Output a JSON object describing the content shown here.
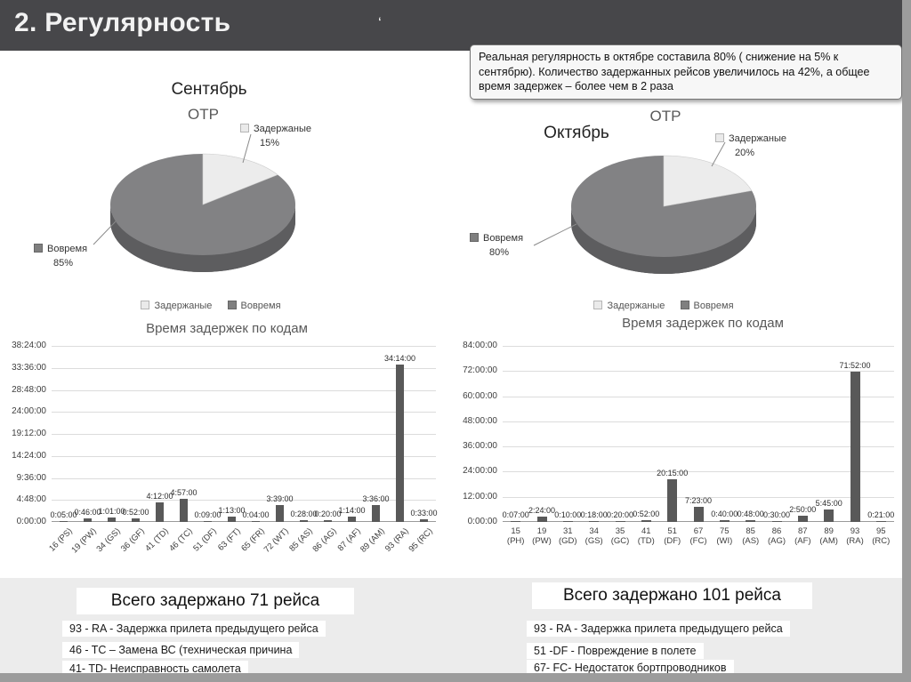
{
  "slide": {
    "title": "2. Регулярность",
    "stray_mark": "‘",
    "note": "Реальная регулярность в октябре составила 80% ( снижение на 5% к сентябрю). Количество задержанных рейсов увеличилось на 42%, а общее время задержек – более чем в 2 раза"
  },
  "colors": {
    "header_bg": "#47474a",
    "bar": "#595959",
    "pie_ontime": "#828284",
    "pie_delayed": "#ececec",
    "bottom_strip": "#ececec"
  },
  "sections": {
    "september": {
      "month": "Сентябрь",
      "total": "Всего задержано 71 рейса",
      "notes": [
        "93 - RA - Задержка прилета предыдущего рейса",
        "46 - TC – Замена ВС (техническая причина",
        "41- TD- Неисправность самолета"
      ]
    },
    "october": {
      "month": "Октябрь",
      "total": "Всего задержано 101 рейса",
      "notes": [
        "93 - RA - Задержка прилета предыдущего рейса",
        "51 -DF - Повреждение в полете",
        "67- FC- Недостаток бортпроводников"
      ]
    }
  },
  "chart_data": [
    {
      "id": "pie-september",
      "type": "pie",
      "title": "ОТР",
      "labels": [
        "Задержаные",
        "Вовремя"
      ],
      "values": [
        15,
        85
      ],
      "value_labels": [
        "15%",
        "85%"
      ],
      "legend": [
        "Задержаные",
        "Вовремя"
      ],
      "legend_position": "bottom"
    },
    {
      "id": "pie-october",
      "type": "pie",
      "title": "ОТР",
      "labels": [
        "Задержаные",
        "Вовремя"
      ],
      "values": [
        20,
        80
      ],
      "value_labels": [
        "20%",
        "80%"
      ],
      "legend": [
        "Задержаные",
        "Вовремя"
      ],
      "legend_position": "bottom"
    },
    {
      "id": "bars-september",
      "type": "bar",
      "title": "Время задержек по кодам",
      "categories": [
        "16 (PS)",
        "19 (PW)",
        "34 (GS)",
        "36 (GF)",
        "41 (TD)",
        "46 (TC)",
        "51 (DF)",
        "63 (FT)",
        "65 (FR)",
        "72 (WT)",
        "85 (AS)",
        "86 (AG)",
        "87 (AF)",
        "89 (AM)",
        "93 (RA)",
        "95 (RC)"
      ],
      "values_hms": [
        "0:05:00",
        "0:46:00",
        "1:01:00",
        "0:52:00",
        "4:12:00",
        "4:57:00",
        "0:09:00",
        "1:13:00",
        "0:04:00",
        "3:39:00",
        "0:28:00",
        "0:20:00",
        "1:14:00",
        "3:36:00",
        "34:14:00",
        "0:33:00"
      ],
      "y_ticks": [
        "0:00:00",
        "4:48:00",
        "9:36:00",
        "14:24:00",
        "19:12:00",
        "24:00:00",
        "28:48:00",
        "33:36:00",
        "38:24:00"
      ],
      "x_labels_rotated": true,
      "grid": true
    },
    {
      "id": "bars-october",
      "type": "bar",
      "title": "Время задержек по кодам",
      "categories": [
        "15 (PH)",
        "19 (PW)",
        "31 (GD)",
        "34 (GS)",
        "35 (GC)",
        "41 (TD)",
        "51 (DF)",
        "67 (FC)",
        "75 (WI)",
        "85 (AS)",
        "86 (AG)",
        "87 (AF)",
        "89 (AM)",
        "93 (RA)",
        "95 (RC)"
      ],
      "values_hms": [
        "0:07:00",
        "2:24:00",
        "0:10:00",
        "0:18:00",
        "0:20:00",
        "0:52:00",
        "20:15:00",
        "7:23:00",
        "0:40:00",
        "0:48:00",
        "0:30:00",
        "2:50:00",
        "5:45:00",
        "71:52:00",
        "0:21:00"
      ],
      "y_ticks": [
        "0:00:00",
        "12:00:00",
        "24:00:00",
        "36:00:00",
        "48:00:00",
        "60:00:00",
        "72:00:00",
        "84:00:00"
      ],
      "x_labels_rotated": false,
      "grid": true
    }
  ]
}
